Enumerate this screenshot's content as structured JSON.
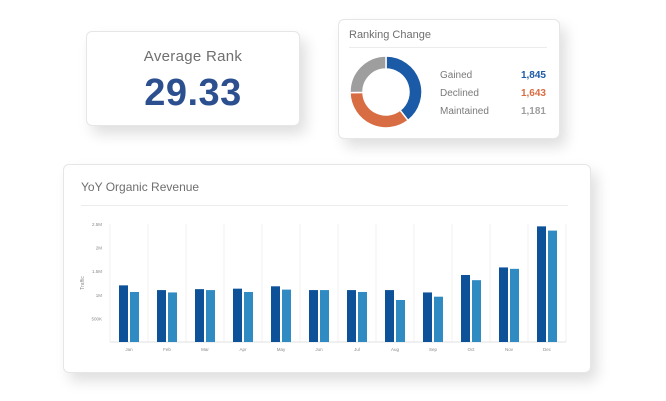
{
  "average_rank": {
    "title": "Average Rank",
    "value": "29.33"
  },
  "ranking_change": {
    "title": "Ranking Change",
    "items": [
      {
        "label": "Gained",
        "value": "1,845",
        "count": 1845,
        "color": "#1b5aa6"
      },
      {
        "label": "Declined",
        "value": "1,643",
        "count": 1643,
        "color": "#d86d43"
      },
      {
        "label": "Maintained",
        "value": "1,181",
        "count": 1181,
        "color": "#9e9e9e"
      }
    ]
  },
  "revenue": {
    "title": "YoY Organic Revenue"
  },
  "chart_data": {
    "type": "bar",
    "title": "YoY Organic Revenue",
    "ylabel": "Traffic",
    "xlabel": "",
    "categories": [
      "Jan",
      "Feb",
      "Mar",
      "Apr",
      "May",
      "Jun",
      "Jul",
      "Aug",
      "Sep",
      "Oct",
      "Nov",
      "Dec"
    ],
    "y_ticks": [
      {
        "value": 500000,
        "label": "500K"
      },
      {
        "value": 1000000,
        "label": "1M"
      },
      {
        "value": 1500000,
        "label": "1.5M"
      },
      {
        "value": 2000000,
        "label": "2M"
      },
      {
        "value": 2500000,
        "label": "2.5M"
      }
    ],
    "ylim": [
      0,
      2500000
    ],
    "grid": true,
    "series": [
      {
        "values": [
          1200000,
          1100000,
          1120000,
          1130000,
          1180000,
          1100000,
          1100000,
          1100000,
          1050000,
          1420000,
          1580000,
          2450000
        ],
        "color": "#0d5299"
      },
      {
        "values": [
          1060000,
          1050000,
          1100000,
          1060000,
          1110000,
          1100000,
          1060000,
          890000,
          960000,
          1310000,
          1550000,
          2360000
        ],
        "color": "#2f8bc2"
      }
    ]
  }
}
